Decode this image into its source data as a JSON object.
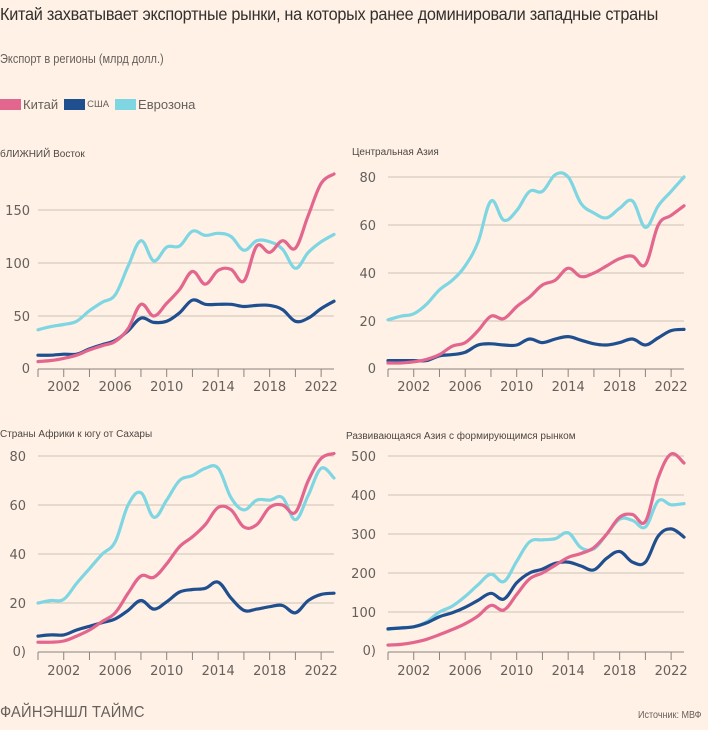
{
  "header": {
    "title": "Китай захватывает экспортные рынки, на которых ранее доминировали западные страны",
    "subtitle": "Экспорт в регионы (млрд долл.)"
  },
  "legend": [
    {
      "label": "Китай",
      "color": "#e3668f"
    },
    {
      "label": "США",
      "color": "#1f4f8f"
    },
    {
      "label": "Еврозона",
      "color": "#7fd6e3"
    }
  ],
  "footer": {
    "brand": "ФАЙНЭНШЛ ТАЙМС",
    "source": "Источник: МВФ"
  },
  "chart_data": [
    {
      "type": "line",
      "title": "бЛИЖНИЙ Восток",
      "x": [
        2000,
        2001,
        2002,
        2003,
        2004,
        2005,
        2006,
        2007,
        2008,
        2009,
        2010,
        2011,
        2012,
        2013,
        2014,
        2015,
        2016,
        2017,
        2018,
        2019,
        2020,
        2021,
        2022,
        2023
      ],
      "xticks": [
        "2002",
        "2006",
        "2010",
        "2014",
        "2018",
        "2022"
      ],
      "xlim": [
        2000,
        2023
      ],
      "ylim": [
        0,
        185
      ],
      "yticks": [
        0,
        50,
        100,
        150
      ],
      "ytick_labels": [
        "0",
        "50",
        "100",
        "150"
      ],
      "grid": true,
      "series": [
        {
          "name": "Еврозона",
          "values": [
            37,
            40,
            42,
            45,
            55,
            63,
            70,
            97,
            121,
            102,
            115,
            116,
            130,
            126,
            128,
            125,
            112,
            121,
            120,
            113,
            95,
            110,
            120,
            127
          ]
        },
        {
          "name": "США",
          "values": [
            13,
            13,
            14,
            14,
            19,
            23,
            27,
            36,
            48,
            44,
            45,
            53,
            65,
            61,
            61,
            61,
            59,
            60,
            60,
            56,
            45,
            48,
            57,
            64
          ]
        },
        {
          "name": "Китай",
          "values": [
            7,
            8,
            10,
            13,
            18,
            22,
            26,
            38,
            61,
            50,
            62,
            75,
            92,
            80,
            93,
            94,
            83,
            116,
            110,
            121,
            114,
            145,
            175,
            184
          ]
        }
      ]
    },
    {
      "type": "line",
      "title": "Центральная Азия",
      "x": [
        2000,
        2001,
        2002,
        2003,
        2004,
        2005,
        2006,
        2007,
        2008,
        2009,
        2010,
        2011,
        2012,
        2013,
        2014,
        2015,
        2016,
        2017,
        2018,
        2019,
        2020,
        2021,
        2022,
        2023
      ],
      "xticks": [
        "2002",
        "2006",
        "2010",
        "2014",
        "2018",
        "2022"
      ],
      "xlim": [
        2000,
        2023
      ],
      "ylim": [
        0,
        82
      ],
      "yticks": [
        0,
        20,
        40,
        60,
        80
      ],
      "ytick_labels": [
        "0",
        "20",
        "40",
        "60",
        "80"
      ],
      "grid": true,
      "series": [
        {
          "name": "Еврозона",
          "values": [
            20.5,
            22,
            23,
            27,
            33,
            37,
            43,
            53,
            70,
            62,
            66,
            74,
            74,
            81,
            80,
            69,
            65,
            63,
            67,
            70,
            59,
            68,
            74,
            80
          ]
        },
        {
          "name": "США",
          "values": [
            3.5,
            3.5,
            3.5,
            3.5,
            5.5,
            6,
            7,
            10,
            10.5,
            10,
            10,
            12.5,
            11,
            12.5,
            13.5,
            12,
            10.5,
            10,
            11,
            12.5,
            10,
            13,
            16,
            16.5
          ]
        },
        {
          "name": "Китай",
          "values": [
            2.5,
            2.5,
            3,
            4,
            6,
            9.5,
            11,
            16,
            22,
            21,
            26,
            30,
            35,
            37,
            42,
            38.5,
            40,
            43,
            46,
            47,
            43.5,
            60,
            64,
            68
          ]
        }
      ]
    },
    {
      "type": "line",
      "title": "Страны Африки к югу от Сахары",
      "x": [
        2000,
        2001,
        2002,
        2003,
        2004,
        2005,
        2006,
        2007,
        2008,
        2009,
        2010,
        2011,
        2012,
        2013,
        2014,
        2015,
        2016,
        2017,
        2018,
        2019,
        2020,
        2021,
        2022,
        2023
      ],
      "xticks": [
        "2002",
        "2006",
        "2010",
        "2014",
        "2018",
        "2022"
      ],
      "xlim": [
        2000,
        2023
      ],
      "ylim": [
        0,
        82
      ],
      "yticks": [
        0,
        20,
        40,
        60,
        80
      ],
      "ytick_labels": [
        "0)",
        "20",
        "40",
        "60",
        "80"
      ],
      "grid": true,
      "series": [
        {
          "name": "Еврозона",
          "values": [
            20,
            21,
            21.5,
            28,
            34,
            40,
            45,
            60,
            65,
            55,
            62,
            70,
            72,
            75,
            75,
            63,
            58,
            62,
            62,
            63,
            54,
            64,
            75,
            71
          ]
        },
        {
          "name": "США",
          "values": [
            6.5,
            7,
            7,
            9,
            10.5,
            12,
            13.5,
            17,
            21,
            17.5,
            20.5,
            24.5,
            25.5,
            26,
            28.5,
            22,
            17,
            17.5,
            18.5,
            19,
            16,
            21,
            23.5,
            24
          ]
        },
        {
          "name": "Китай",
          "values": [
            4,
            4,
            4.5,
            6.5,
            9,
            12.5,
            16,
            24,
            31,
            30.5,
            36,
            43,
            47,
            52,
            59,
            58,
            51,
            52,
            59,
            60,
            57,
            70,
            79,
            81
          ]
        }
      ]
    },
    {
      "type": "line",
      "title": "Развивающаяся Азия с формирующимся рынком",
      "x": [
        2000,
        2001,
        2002,
        2003,
        2004,
        2005,
        2006,
        2007,
        2008,
        2009,
        2010,
        2011,
        2012,
        2013,
        2014,
        2015,
        2016,
        2017,
        2018,
        2019,
        2020,
        2021,
        2022,
        2023
      ],
      "xticks": [
        "2002",
        "2006",
        "2010",
        "2014",
        "2018",
        "2022"
      ],
      "xlim": [
        2000,
        2023
      ],
      "ylim": [
        0,
        510
      ],
      "yticks": [
        0,
        100,
        200,
        300,
        400,
        500
      ],
      "ytick_labels": [
        "0)",
        "100",
        "200",
        "300",
        "400",
        "500"
      ],
      "grid": true,
      "series": [
        {
          "name": "Еврозона",
          "values": [
            55,
            60,
            62,
            75,
            100,
            115,
            140,
            170,
            197,
            178,
            230,
            280,
            285,
            288,
            303,
            265,
            262,
            300,
            338,
            335,
            318,
            385,
            375,
            378
          ]
        },
        {
          "name": "США",
          "values": [
            57,
            59,
            62,
            72,
            88,
            98,
            112,
            130,
            148,
            133,
            175,
            200,
            210,
            225,
            228,
            218,
            208,
            238,
            255,
            228,
            228,
            295,
            313,
            292
          ]
        },
        {
          "name": "Китай",
          "values": [
            15,
            17,
            22,
            30,
            42,
            55,
            70,
            90,
            117,
            105,
            145,
            185,
            200,
            220,
            240,
            250,
            265,
            300,
            343,
            350,
            332,
            445,
            505,
            482
          ]
        }
      ]
    }
  ]
}
